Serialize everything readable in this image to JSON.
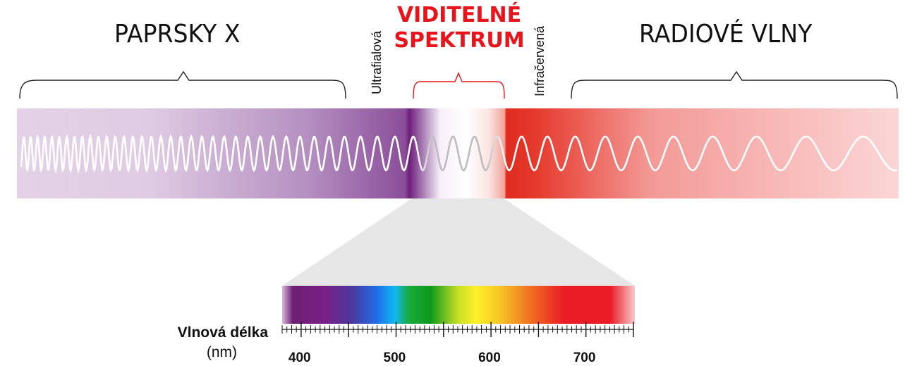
{
  "regions": {
    "xray_label": "PAPRSKY X",
    "radio_label": "RADIOVÉ VLNY",
    "visible_label_line1": "VIDITELNÉ",
    "visible_label_line2": "SPEKTRUM",
    "uv_label": "Ultrafialová",
    "ir_label": "Infračervená"
  },
  "scale": {
    "title": "Vlnová délka",
    "unit": "(nm)",
    "ticks": [
      "400",
      "500",
      "600",
      "700"
    ],
    "range_nm": [
      380,
      750
    ]
  },
  "colors": {
    "visible_accent": "#e8141c",
    "uv": "#6e1f7c",
    "ir": "#e02a1e",
    "band_left": "#e3d2e6",
    "band_right": "#fbd6d6"
  }
}
